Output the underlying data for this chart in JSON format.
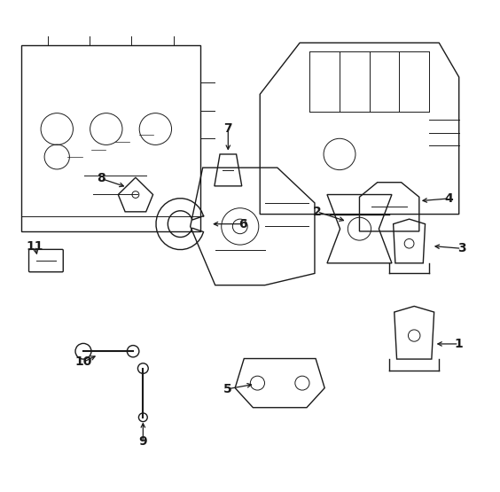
{
  "figsize": [
    5.64,
    5.55
  ],
  "dpi": 100,
  "background_color": "#ffffff",
  "line_color": "#1a1a1a",
  "label_color": "#000000",
  "parts_labels": [
    [
      1,
      0.92,
      0.3,
      0.87,
      0.3
    ],
    [
      2,
      0.635,
      0.57,
      0.695,
      0.55
    ],
    [
      3,
      0.925,
      0.495,
      0.865,
      0.5
    ],
    [
      4,
      0.9,
      0.597,
      0.84,
      0.592
    ],
    [
      5,
      0.455,
      0.208,
      0.51,
      0.218
    ],
    [
      6,
      0.485,
      0.545,
      0.42,
      0.545
    ],
    [
      7,
      0.456,
      0.74,
      0.456,
      0.69
    ],
    [
      8,
      0.2,
      0.638,
      0.253,
      0.62
    ],
    [
      9,
      0.285,
      0.1,
      0.285,
      0.145
    ],
    [
      10,
      0.165,
      0.263,
      0.195,
      0.278
    ],
    [
      11,
      0.068,
      0.5,
      0.073,
      0.477
    ]
  ]
}
